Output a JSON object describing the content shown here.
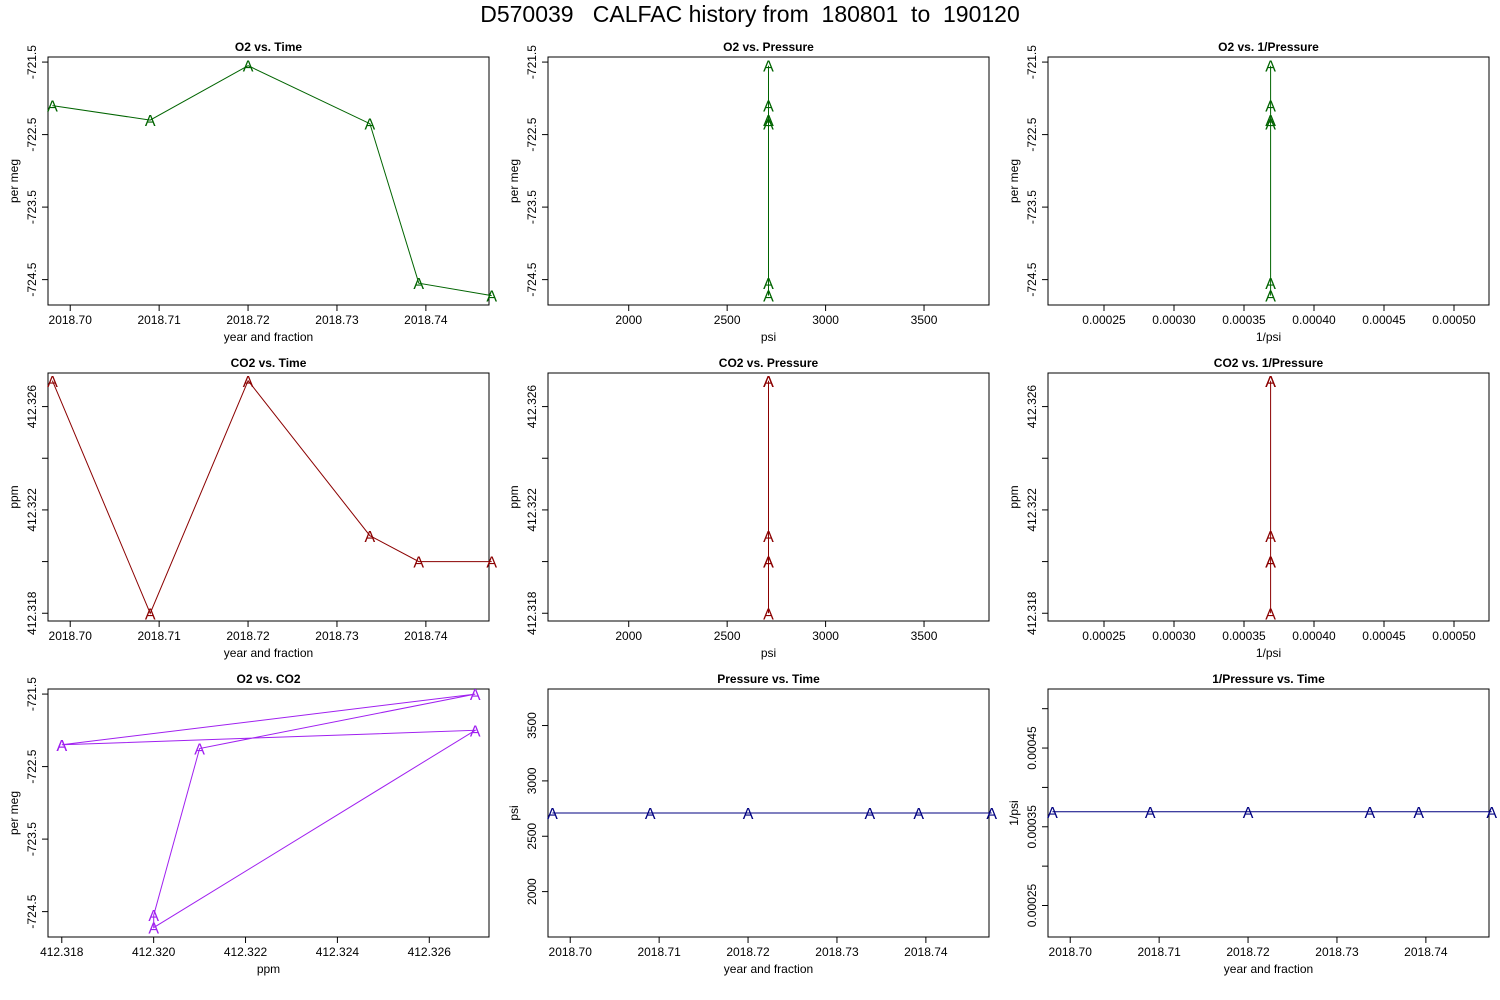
{
  "page": {
    "title": "D570039   CALFAC history from  180801  to  190120"
  },
  "chart_data": [
    {
      "type": "line",
      "marker": "A",
      "color": "#006400",
      "title": "O2 vs. Time",
      "xlabel": "year and fraction",
      "ylabel": "per meg",
      "xlim": [
        2018.6975,
        2018.7471
      ],
      "ylim": [
        -724.85,
        -721.43
      ],
      "xticks": [
        2018.7,
        2018.71,
        2018.72,
        2018.73,
        2018.74
      ],
      "xtick_labels": [
        "2018.70",
        "2018.71",
        "2018.72",
        "2018.73",
        "2018.74"
      ],
      "yticks": [
        -721.5,
        -722.5,
        -723.5,
        -724.5
      ],
      "ytick_labels": [
        "-721.5",
        "-722.5",
        "-723.5",
        "-724.5"
      ],
      "x": [
        2018.698,
        2018.709,
        2018.72,
        2018.7337,
        2018.7392,
        2018.7474
      ],
      "y": [
        -722.1,
        -722.3,
        -721.55,
        -722.35,
        -724.55,
        -724.72
      ]
    },
    {
      "type": "line",
      "marker": "A",
      "color": "#006400",
      "title": "O2 vs. Pressure",
      "xlabel": "psi",
      "ylabel": "per meg",
      "xlim": [
        1590,
        3830
      ],
      "ylim": [
        -724.85,
        -721.43
      ],
      "xticks": [
        2000,
        2500,
        3000,
        3500
      ],
      "xtick_labels": [
        "2000",
        "2500",
        "3000",
        "3500"
      ],
      "yticks": [
        -721.5,
        -722.5,
        -723.5,
        -724.5
      ],
      "ytick_labels": [
        "-721.5",
        "-722.5",
        "-723.5",
        "-724.5"
      ],
      "x": [
        2710,
        2710,
        2710,
        2710,
        2710,
        2710
      ],
      "y": [
        -722.1,
        -722.3,
        -721.55,
        -722.35,
        -724.55,
        -724.72
      ]
    },
    {
      "type": "line",
      "marker": "A",
      "color": "#006400",
      "title": "O2 vs. 1/Pressure",
      "xlabel": "1/psi",
      "ylabel": "per meg",
      "xlim": [
        0.00021,
        0.000525
      ],
      "ylim": [
        -724.85,
        -721.43
      ],
      "xticks": [
        0.00025,
        0.0003,
        0.00035,
        0.0004,
        0.00045,
        0.0005
      ],
      "xtick_labels": [
        "0.00025",
        "0.00030",
        "0.00035",
        "0.00040",
        "0.00045",
        "0.00050"
      ],
      "yticks": [
        -721.5,
        -722.5,
        -723.5,
        -724.5
      ],
      "ytick_labels": [
        "-721.5",
        "-722.5",
        "-723.5",
        "-724.5"
      ],
      "x": [
        0.000369,
        0.000369,
        0.000369,
        0.000369,
        0.000369,
        0.000369
      ],
      "y": [
        -722.1,
        -722.3,
        -721.55,
        -722.35,
        -724.55,
        -724.72
      ]
    },
    {
      "type": "line",
      "marker": "A",
      "color": "#8b0000",
      "title": "CO2 vs. Time",
      "xlabel": "year and fraction",
      "ylabel": "ppm",
      "xlim": [
        2018.6975,
        2018.7471
      ],
      "ylim": [
        412.3177,
        412.3273
      ],
      "xticks": [
        2018.7,
        2018.71,
        2018.72,
        2018.73,
        2018.74
      ],
      "xtick_labels": [
        "2018.70",
        "2018.71",
        "2018.72",
        "2018.73",
        "2018.74"
      ],
      "yticks": [
        412.318,
        412.322,
        412.326
      ],
      "ytick_labels": [
        "412.318",
        "412.322",
        "412.326"
      ],
      "yminor": [
        412.32,
        412.324
      ],
      "x": [
        2018.698,
        2018.709,
        2018.72,
        2018.7337,
        2018.7392,
        2018.7474
      ],
      "y": [
        412.327,
        412.318,
        412.327,
        412.321,
        412.32,
        412.32
      ]
    },
    {
      "type": "line",
      "marker": "A",
      "color": "#8b0000",
      "title": "CO2 vs. Pressure",
      "xlabel": "psi",
      "ylabel": "ppm",
      "xlim": [
        1590,
        3830
      ],
      "ylim": [
        412.3177,
        412.3273
      ],
      "xticks": [
        2000,
        2500,
        3000,
        3500
      ],
      "xtick_labels": [
        "2000",
        "2500",
        "3000",
        "3500"
      ],
      "yticks": [
        412.318,
        412.322,
        412.326
      ],
      "ytick_labels": [
        "412.318",
        "412.322",
        "412.326"
      ],
      "yminor": [
        412.32,
        412.324
      ],
      "x": [
        2710,
        2710,
        2710,
        2710,
        2710,
        2710
      ],
      "y": [
        412.327,
        412.318,
        412.327,
        412.321,
        412.32,
        412.32
      ]
    },
    {
      "type": "line",
      "marker": "A",
      "color": "#8b0000",
      "title": "CO2 vs. 1/Pressure",
      "xlabel": "1/psi",
      "ylabel": "ppm",
      "xlim": [
        0.00021,
        0.000525
      ],
      "ylim": [
        412.3177,
        412.3273
      ],
      "xticks": [
        0.00025,
        0.0003,
        0.00035,
        0.0004,
        0.00045,
        0.0005
      ],
      "xtick_labels": [
        "0.00025",
        "0.00030",
        "0.00035",
        "0.00040",
        "0.00045",
        "0.00050"
      ],
      "yticks": [
        412.318,
        412.322,
        412.326
      ],
      "ytick_labels": [
        "412.318",
        "412.322",
        "412.326"
      ],
      "yminor": [
        412.32,
        412.324
      ],
      "x": [
        0.000369,
        0.000369,
        0.000369,
        0.000369,
        0.000369,
        0.000369
      ],
      "y": [
        412.327,
        412.318,
        412.327,
        412.321,
        412.32,
        412.32
      ]
    },
    {
      "type": "line",
      "marker": "A",
      "color": "#a020f0",
      "title": "O2 vs. CO2",
      "xlabel": "ppm",
      "ylabel": "per meg",
      "xlim": [
        412.3177,
        412.3273
      ],
      "ylim": [
        -724.85,
        -721.43
      ],
      "xticks": [
        412.318,
        412.32,
        412.322,
        412.324,
        412.326
      ],
      "xtick_labels": [
        "412.318",
        "412.320",
        "412.322",
        "412.324",
        "412.326"
      ],
      "yticks": [
        -721.5,
        -722.5,
        -723.5,
        -724.5
      ],
      "ytick_labels": [
        "-721.5",
        "-722.5",
        "-723.5",
        "-724.5"
      ],
      "x": [
        412.318,
        412.327,
        412.321,
        412.32,
        412.32,
        412.327,
        412.318
      ],
      "y": [
        -722.2,
        -721.5,
        -722.25,
        -724.55,
        -724.72,
        -722.0,
        -722.2
      ]
    },
    {
      "type": "line",
      "marker": "A",
      "color": "#000080",
      "title": "Pressure vs. Time",
      "xlabel": "year and fraction",
      "ylabel": "psi",
      "xlim": [
        2018.6975,
        2018.7471
      ],
      "ylim": [
        1590,
        3830
      ],
      "xticks": [
        2018.7,
        2018.71,
        2018.72,
        2018.73,
        2018.74
      ],
      "xtick_labels": [
        "2018.70",
        "2018.71",
        "2018.72",
        "2018.73",
        "2018.74"
      ],
      "yticks": [
        2000,
        2500,
        3000,
        3500
      ],
      "ytick_labels": [
        "2000",
        "2500",
        "3000",
        "3500"
      ],
      "x": [
        2018.698,
        2018.709,
        2018.72,
        2018.7337,
        2018.7392,
        2018.7474
      ],
      "y": [
        2710,
        2710,
        2710,
        2710,
        2710,
        2710
      ]
    },
    {
      "type": "line",
      "marker": "A",
      "color": "#000080",
      "title": "1/Pressure vs. Time",
      "xlabel": "year and fraction",
      "ylabel": "1/psi",
      "xlim": [
        2018.6975,
        2018.7471
      ],
      "ylim": [
        0.00021,
        0.000525
      ],
      "xticks": [
        2018.7,
        2018.71,
        2018.72,
        2018.73,
        2018.74
      ],
      "xtick_labels": [
        "2018.70",
        "2018.71",
        "2018.72",
        "2018.73",
        "2018.74"
      ],
      "yticks": [
        0.00025,
        0.00035,
        0.00045
      ],
      "ytick_labels": [
        "0.00025",
        "0.00035",
        "0.00045"
      ],
      "yminor": [
        0.0003,
        0.0004,
        0.0005
      ],
      "x": [
        2018.698,
        2018.709,
        2018.72,
        2018.7337,
        2018.7392,
        2018.7474
      ],
      "y": [
        0.000369,
        0.000369,
        0.000369,
        0.000369,
        0.000369,
        0.000369
      ]
    }
  ]
}
